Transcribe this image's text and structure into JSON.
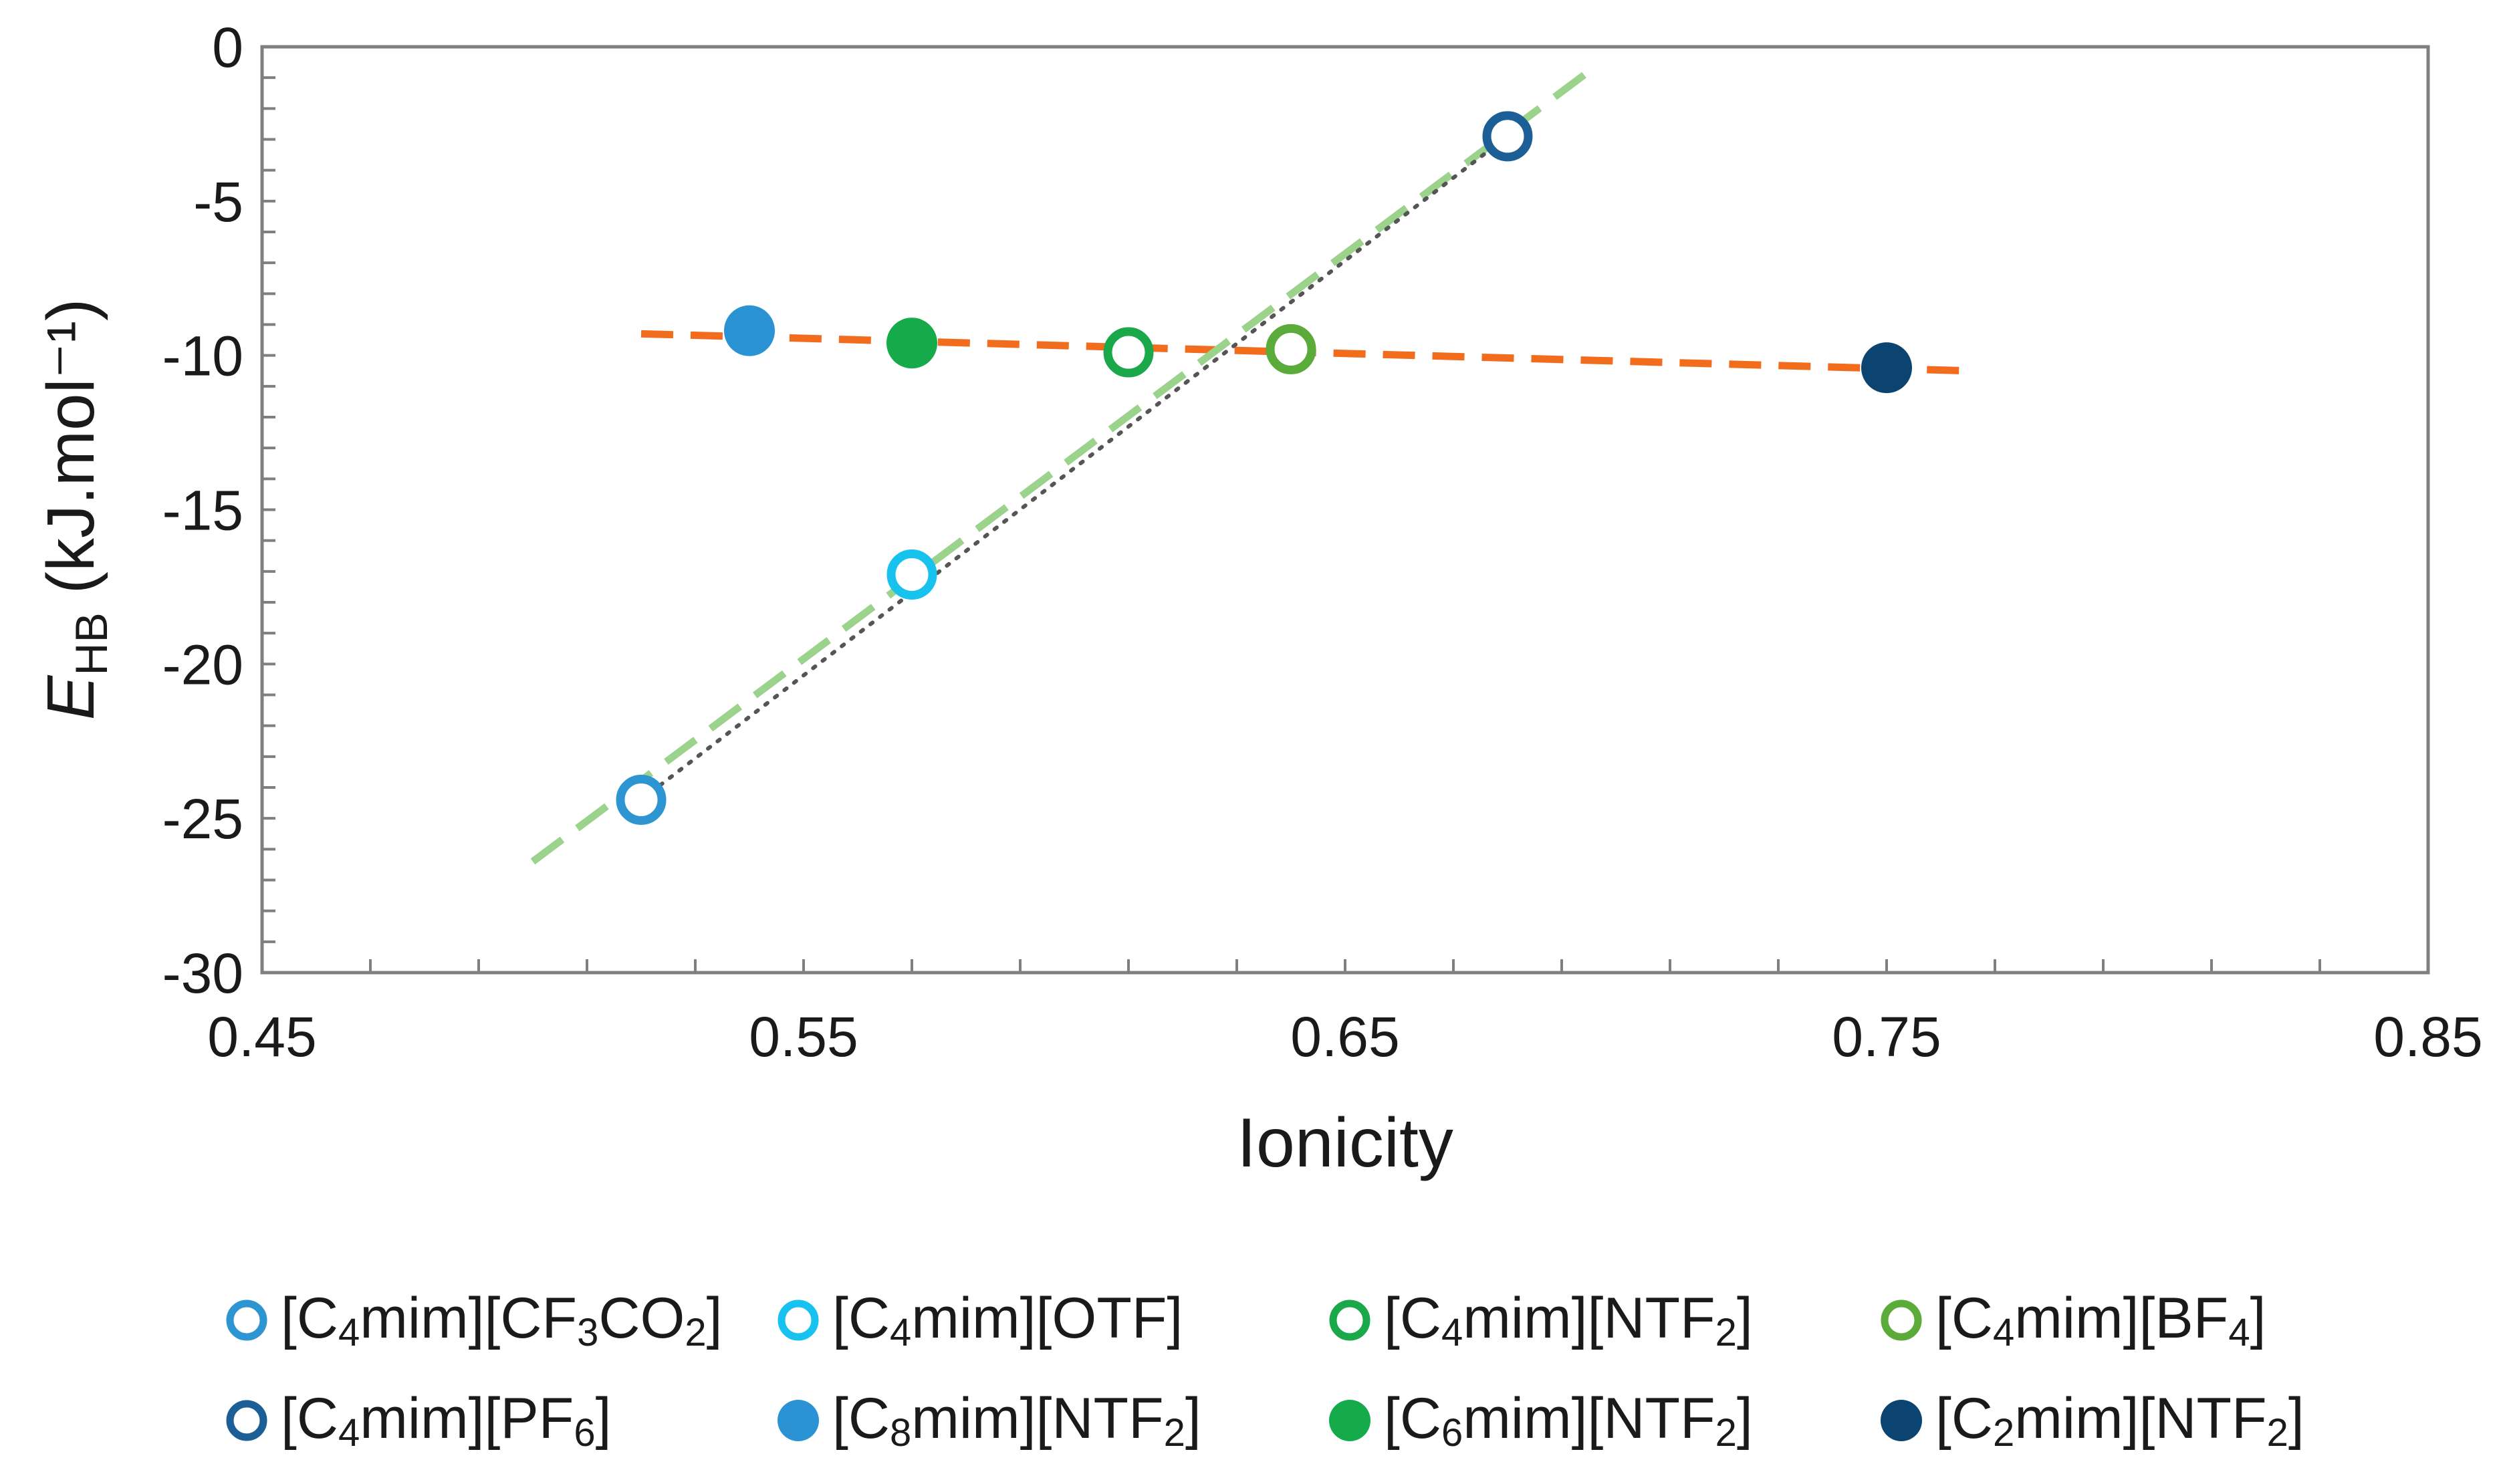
{
  "chart_data": {
    "type": "scatter",
    "xlabel": "Ionicity",
    "ylabel": {
      "main": "E",
      "sub": "HB",
      "rest": " (kJ.mol⁻¹)"
    },
    "xlim": [
      0.45,
      0.85
    ],
    "ylim": [
      -30,
      0
    ],
    "x_ticks": [
      0.45,
      0.55,
      0.65,
      0.75,
      0.85
    ],
    "x_tick_labels": [
      "0.45",
      "0.55",
      "0.65",
      "0.75",
      "0.85"
    ],
    "y_ticks": [
      0,
      -5,
      -10,
      -15,
      -20,
      -25,
      -30
    ],
    "y_tick_labels": [
      "0",
      "-5",
      "-10",
      "-15",
      "-20",
      "-25",
      "-30"
    ],
    "grid": false,
    "legend_position": "bottom",
    "series": [
      {
        "name": "[C4mim][CF3CO2]",
        "x": 0.52,
        "y": -24.4,
        "color": "#2e95d3",
        "filled": false
      },
      {
        "name": "[C4mim][OTF]",
        "x": 0.57,
        "y": -17.1,
        "color": "#17c2ef",
        "filled": false
      },
      {
        "name": "[C4mim][NTF2]",
        "x": 0.61,
        "y": -9.9,
        "color": "#1aa84a",
        "filled": false
      },
      {
        "name": "[C4mim][BF4]",
        "x": 0.64,
        "y": -9.8,
        "color": "#5aab3a",
        "filled": false
      },
      {
        "name": "[C4mim][PF6]",
        "x": 0.68,
        "y": -2.9,
        "color": "#1c5e96",
        "filled": false
      },
      {
        "name": "[C8mim][NTF2]",
        "x": 0.54,
        "y": -9.2,
        "color": "#2b93d3",
        "filled": true
      },
      {
        "name": "[C6mim][NTF2]",
        "x": 0.57,
        "y": -9.6,
        "color": "#15ab4b",
        "filled": true
      },
      {
        "name": "[C2mim][NTF2]",
        "x": 0.75,
        "y": -10.4,
        "color": "#0b4470",
        "filled": true
      }
    ],
    "trendlines": [
      {
        "name": "orange-trend",
        "color": "#f26c1e",
        "style": "dashed",
        "x": [
          0.52,
          0.765
        ],
        "y": [
          -9.3,
          -10.5
        ]
      },
      {
        "name": "green-trend",
        "color": "#9bd38c",
        "style": "dashed",
        "x": [
          0.5,
          0.695
        ],
        "y": [
          -26.4,
          -0.8
        ]
      },
      {
        "name": "gray-trend",
        "color": "#555555",
        "style": "dotted",
        "x": [
          0.52,
          0.68
        ],
        "y": [
          -24.4,
          -2.9
        ]
      }
    ]
  },
  "legend": {
    "items": [
      {
        "prefix": "[C",
        "sub1": "4",
        "middle": "mim][CF",
        "sub2": "3",
        "after": "CO",
        "sub3": "2",
        "suffix": "]"
      },
      {
        "prefix": "[C",
        "sub1": "4",
        "middle": "mim][OTF]",
        "sub2": "",
        "after": "",
        "sub3": "",
        "suffix": ""
      },
      {
        "prefix": "[C",
        "sub1": "4",
        "middle": "mim][NTF",
        "sub2": "2",
        "after": "]",
        "sub3": "",
        "suffix": ""
      },
      {
        "prefix": "[C",
        "sub1": "4",
        "middle": "mim][BF",
        "sub2": "4",
        "after": "]",
        "sub3": "",
        "suffix": ""
      },
      {
        "prefix": "[C",
        "sub1": "4",
        "middle": "mim][PF",
        "sub2": "6",
        "after": "]",
        "sub3": "",
        "suffix": ""
      },
      {
        "prefix": "[C",
        "sub1": "8",
        "middle": "mim][NTF",
        "sub2": "2",
        "after": "]",
        "sub3": "",
        "suffix": ""
      },
      {
        "prefix": "[C",
        "sub1": "6",
        "middle": "mim][NTF",
        "sub2": "2",
        "after": "]",
        "sub3": "",
        "suffix": ""
      },
      {
        "prefix": "[C",
        "sub1": "2",
        "middle": "mim][NTF",
        "sub2": "2",
        "after": "]",
        "sub3": "",
        "suffix": ""
      }
    ]
  }
}
